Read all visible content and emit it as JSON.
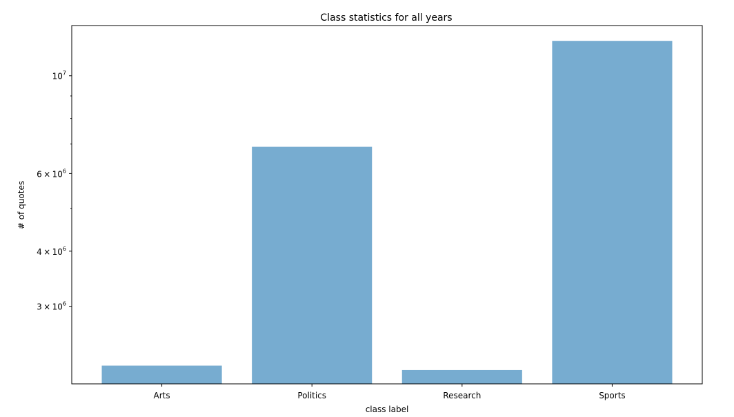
{
  "chart_data": {
    "type": "bar",
    "title": "Class statistics for all years",
    "xlabel": "class label",
    "ylabel": "# of quotes",
    "categories": [
      "Arts",
      "Politics",
      "Research",
      "Sports"
    ],
    "values": [
      2200000,
      6900000,
      2150000,
      12000000
    ],
    "yscale": "log",
    "ylim": [
      2000000,
      13000000
    ],
    "y_major_ticks": [
      {
        "value": 3000000,
        "mantissa": "3",
        "base": "10",
        "exp": "6"
      },
      {
        "value": 4000000,
        "mantissa": "4",
        "base": "10",
        "exp": "6"
      },
      {
        "value": 6000000,
        "mantissa": "6",
        "base": "10",
        "exp": "6"
      },
      {
        "value": 10000000,
        "mantissa": "",
        "base": "10",
        "exp": "7"
      }
    ],
    "y_minor_ticks": [
      5000000,
      7000000,
      8000000,
      9000000
    ],
    "grid": false,
    "bar_color": "#77acd0"
  }
}
